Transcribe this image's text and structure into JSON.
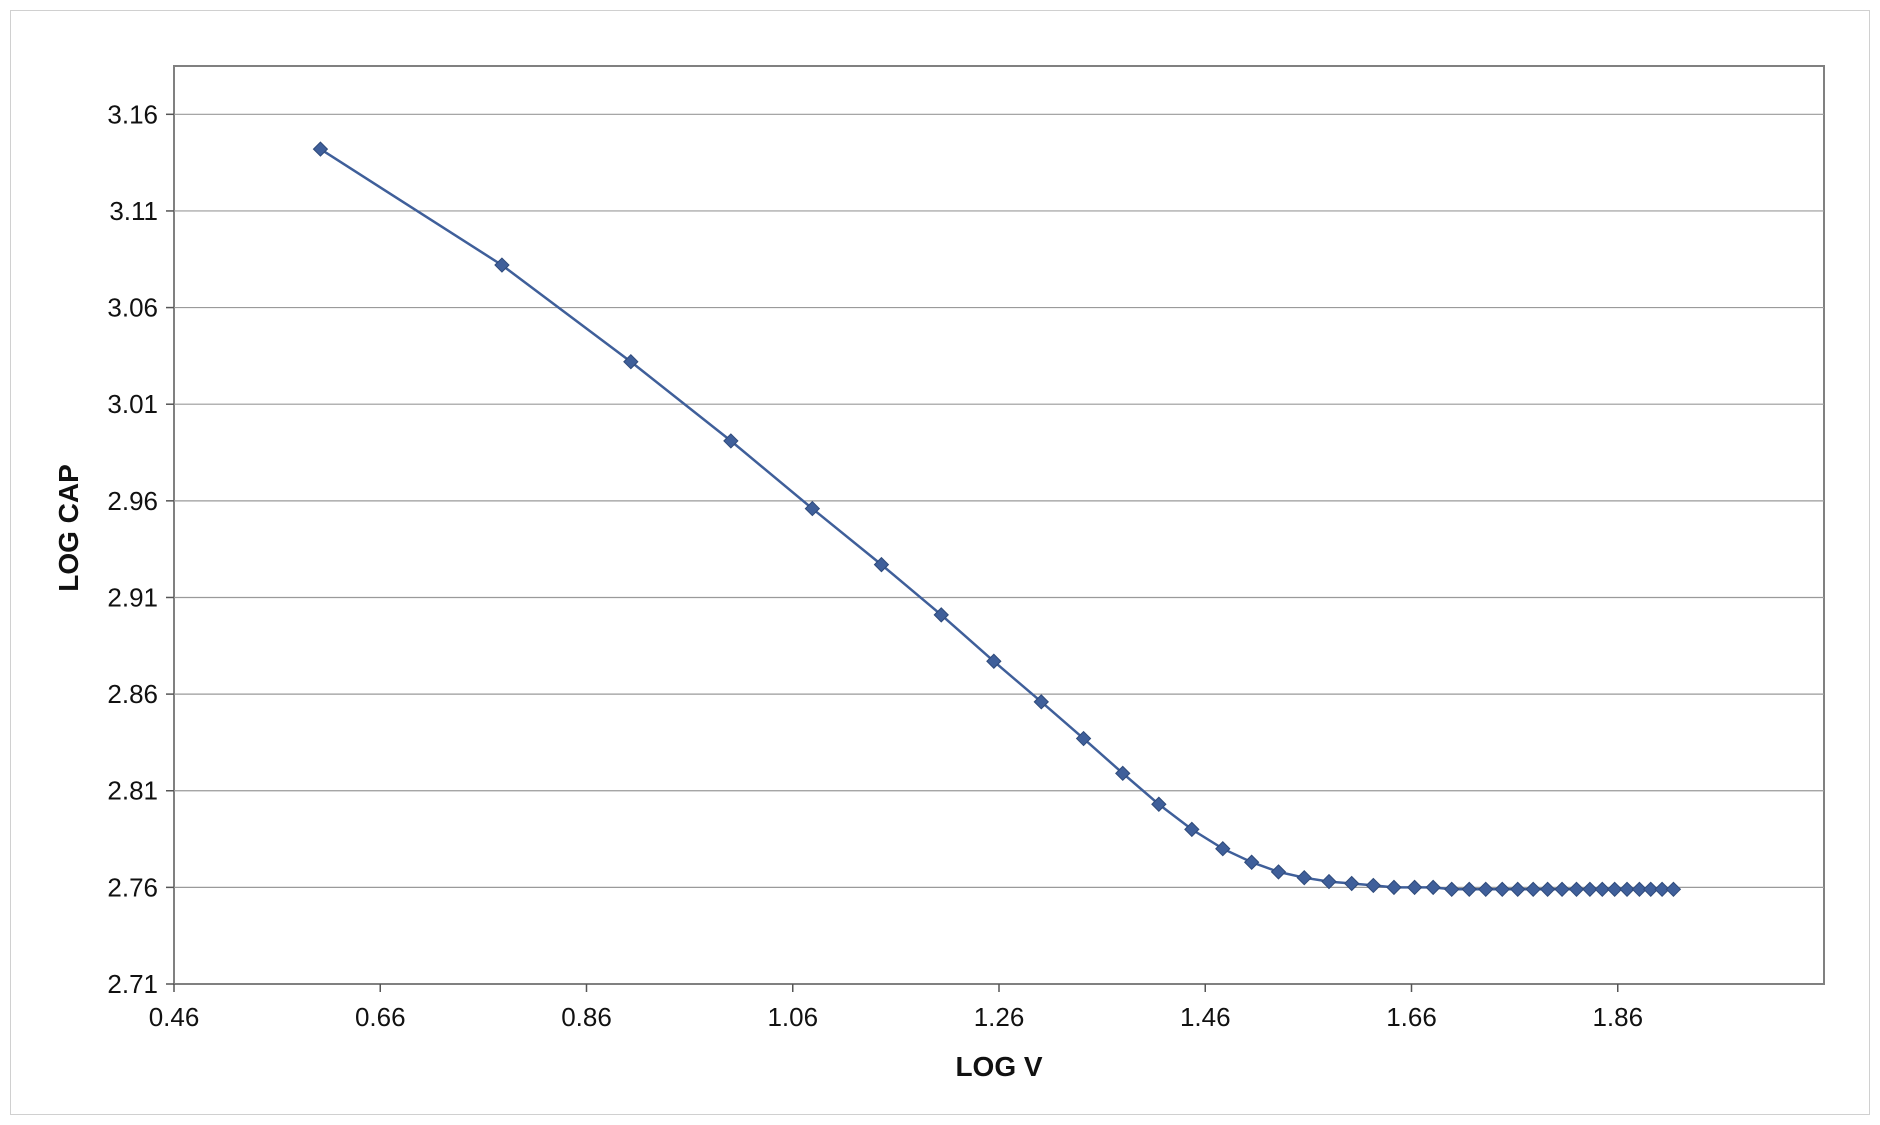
{
  "chart_data": {
    "type": "line",
    "title": "",
    "xlabel": "LOG V",
    "ylabel": "LOG CAP",
    "xlim": [
      0.46,
      2.06
    ],
    "ylim": [
      2.71,
      3.185
    ],
    "x_ticks": [
      "0.46",
      "0.66",
      "0.86",
      "1.06",
      "1.26",
      "1.46",
      "1.66",
      "1.86"
    ],
    "y_ticks": [
      "2.71",
      "2.76",
      "2.81",
      "2.86",
      "2.91",
      "2.96",
      "3.01",
      "3.06",
      "3.11",
      "3.16"
    ],
    "x_tick_values": [
      0.46,
      0.66,
      0.86,
      1.06,
      1.26,
      1.46,
      1.66,
      1.86
    ],
    "y_tick_values": [
      2.71,
      2.76,
      2.81,
      2.86,
      2.91,
      2.96,
      3.01,
      3.06,
      3.11,
      3.16
    ],
    "grid": "horizontal",
    "legend": "none",
    "series": [
      {
        "color": "#3f5f9a",
        "marker": "diamond",
        "x": [
          0.602,
          0.778,
          0.903,
          1.0,
          1.079,
          1.146,
          1.204,
          1.255,
          1.301,
          1.342,
          1.38,
          1.415,
          1.447,
          1.477,
          1.505,
          1.531,
          1.556,
          1.58,
          1.602,
          1.623,
          1.643,
          1.663,
          1.681,
          1.699,
          1.716,
          1.732,
          1.748,
          1.763,
          1.778,
          1.792,
          1.806,
          1.82,
          1.833,
          1.845,
          1.857,
          1.869,
          1.881,
          1.892,
          1.903,
          1.914
        ],
        "y": [
          3.142,
          3.082,
          3.032,
          2.991,
          2.956,
          2.927,
          2.901,
          2.877,
          2.856,
          2.837,
          2.819,
          2.803,
          2.79,
          2.78,
          2.773,
          2.768,
          2.765,
          2.763,
          2.762,
          2.761,
          2.76,
          2.76,
          2.76,
          2.759,
          2.759,
          2.759,
          2.759,
          2.759,
          2.759,
          2.759,
          2.759,
          2.759,
          2.759,
          2.759,
          2.759,
          2.759,
          2.759,
          2.759,
          2.759,
          2.759
        ]
      }
    ]
  }
}
